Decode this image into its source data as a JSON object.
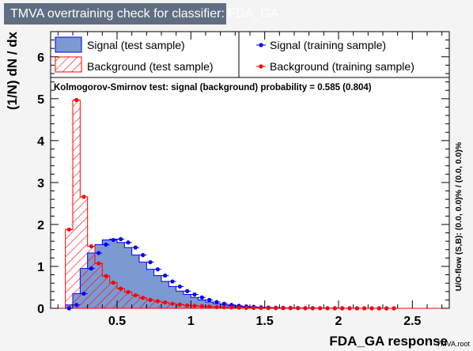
{
  "chart_data": {
    "type": "histogram",
    "title": "TMVA overtraining check for classifier: FDA_GA",
    "xlabel": "FDA_GA response",
    "ylabel": "(1/N) dN / dx",
    "xlim": [
      0.05,
      2.75
    ],
    "ylim": [
      0,
      6.6
    ],
    "x_ticks": [
      "0.5",
      "1",
      "1.5",
      "2",
      "2.5"
    ],
    "y_ticks": [
      "0",
      "1",
      "2",
      "3",
      "4",
      "5",
      "6"
    ],
    "grid": false,
    "legend_placement": "top",
    "annotation": "Kolmogorov-Smirnov test: signal (background) probability = 0.585 (0.804)",
    "right_label": "U/O-flow (S,B): (0.0, 0.0)% / (0.0, 0.0)%",
    "watermark": "TMVA.root",
    "bins": {
      "x_start": 0.05,
      "width": 0.05,
      "signal_test": [
        0.0,
        0.0,
        0.08,
        0.35,
        0.95,
        1.32,
        1.52,
        1.63,
        1.65,
        1.57,
        1.45,
        1.27,
        1.1,
        0.93,
        0.78,
        0.64,
        0.52,
        0.41,
        0.33,
        0.26,
        0.2,
        0.15,
        0.11,
        0.08,
        0.06,
        0.045,
        0.035,
        0.025,
        0.02,
        0.015,
        0.012,
        0.01,
        0.008,
        0.006,
        0.005,
        0.004,
        0.003,
        0.003,
        0.002,
        0.002,
        0.001,
        0.001,
        0.001,
        0.001,
        0.0,
        0.0,
        0.0,
        0.0,
        0.0,
        0.0,
        0.0,
        0.0,
        0.0,
        0.0
      ],
      "background_test": [
        0.0,
        0.0,
        1.88,
        4.97,
        2.66,
        1.48,
        1.07,
        0.77,
        0.61,
        0.47,
        0.39,
        0.31,
        0.25,
        0.2,
        0.17,
        0.14,
        0.11,
        0.09,
        0.07,
        0.06,
        0.05,
        0.04,
        0.03,
        0.025,
        0.02,
        0.015,
        0.012,
        0.01,
        0.008,
        0.006,
        0.005,
        0.004,
        0.003,
        0.002,
        0.002,
        0.001,
        0.001,
        0.001,
        0.0,
        0.0,
        0.0,
        0.0,
        0.0,
        0.0,
        0.0,
        0.0,
        0.0,
        0.0,
        0.0,
        0.0,
        0.0,
        0.0,
        0.0,
        0.0
      ]
    },
    "series": [
      {
        "name": "Signal (test sample)",
        "style": "filled",
        "color": "#7d99d1",
        "edge": "#0000ee"
      },
      {
        "name": "Background (test sample)",
        "style": "hatched",
        "color": "#ff0000"
      },
      {
        "name": "Signal (training sample)",
        "style": "points",
        "color": "#0000ff",
        "x": [
          0.175,
          0.225,
          0.275,
          0.325,
          0.375,
          0.425,
          0.475,
          0.525,
          0.575,
          0.625,
          0.675,
          0.725,
          0.775,
          0.825,
          0.875,
          0.925,
          0.975,
          1.025,
          1.075,
          1.125,
          1.175,
          1.225,
          1.275,
          1.325,
          1.375,
          1.425,
          1.475,
          1.525,
          1.575,
          1.625,
          1.675,
          1.725,
          1.775,
          1.825,
          1.875,
          1.925,
          1.975,
          2.025,
          2.075,
          2.125,
          2.175,
          2.225,
          2.275,
          2.325,
          2.375
        ],
        "y": [
          0.0,
          0.08,
          0.35,
          0.95,
          1.32,
          1.52,
          1.63,
          1.65,
          1.57,
          1.45,
          1.27,
          1.1,
          0.93,
          0.78,
          0.64,
          0.52,
          0.41,
          0.33,
          0.26,
          0.2,
          0.15,
          0.11,
          0.08,
          0.06,
          0.045,
          0.035,
          0.025,
          0.02,
          0.015,
          0.012,
          0.01,
          0.008,
          0.006,
          0.005,
          0.004,
          0.003,
          0.003,
          0.002,
          0.002,
          0.001,
          0.001,
          0.001,
          0.001,
          0.0,
          0.0
        ]
      },
      {
        "name": "Background (training sample)",
        "style": "points",
        "color": "#ff0000",
        "x": [
          0.175,
          0.225,
          0.275,
          0.325,
          0.375,
          0.425,
          0.475,
          0.525,
          0.575,
          0.625,
          0.675,
          0.725,
          0.775,
          0.825,
          0.875,
          0.925,
          0.975,
          1.025,
          1.075,
          1.125,
          1.175,
          1.225,
          1.275,
          1.325,
          1.375,
          1.425,
          1.475,
          1.525,
          1.575,
          1.625,
          1.675,
          1.725,
          1.775,
          1.825,
          1.875,
          1.925,
          1.975,
          2.025,
          2.075,
          2.125,
          2.175,
          2.225,
          2.275,
          2.325,
          2.375
        ],
        "y": [
          1.88,
          4.97,
          2.66,
          1.48,
          1.07,
          0.77,
          0.61,
          0.47,
          0.39,
          0.31,
          0.25,
          0.2,
          0.17,
          0.14,
          0.11,
          0.09,
          0.07,
          0.06,
          0.05,
          0.04,
          0.03,
          0.025,
          0.02,
          0.015,
          0.012,
          0.01,
          0.008,
          0.006,
          0.005,
          0.004,
          0.003,
          0.002,
          0.002,
          0.001,
          0.001,
          0.001,
          0.0,
          0.0,
          0.0,
          0.0,
          0.0,
          0.0,
          0.0,
          0.0,
          0.0
        ]
      }
    ]
  }
}
